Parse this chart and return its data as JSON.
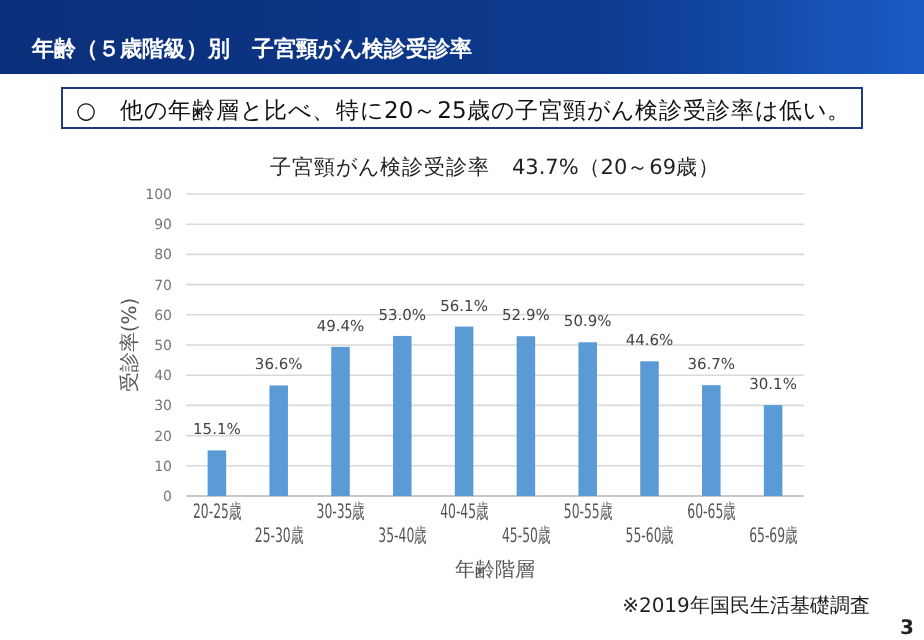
{
  "chart_data": {
    "type": "bar",
    "title": "子宮頸がん検診受診率　43.7%（20～69歳）",
    "subtitle": "○　他の年齢層と比べ、特に20～25歳の子宮頸がん検診受診率は低い。",
    "xlabel": "年齢階層",
    "ylabel": "受診率(%)",
    "annotations": [
      "年齢（５歳階級）別　子宮頸がん検診受診率",
      "※2019年国民生活基礎調査",
      "3"
    ],
    "categories": [
      "20-25歳",
      "25-30歳",
      "30-35歳",
      "35-40歳",
      "40-45歳",
      "45-50歳",
      "50-55歳",
      "55-60歳",
      "60-65歳",
      "65-69歳"
    ],
    "values": [
      15.1,
      36.6,
      49.4,
      53.0,
      56.1,
      52.9,
      50.9,
      44.6,
      36.7,
      30.1
    ],
    "value_labels": [
      "15.1%",
      "36.6%",
      "49.4%",
      "53.0%",
      "56.1%",
      "52.9%",
      "50.9%",
      "44.6%",
      "36.7%",
      "30.1%"
    ],
    "color": "#5b9bd5",
    "ylim": [
      0,
      100
    ],
    "yticks": [
      0,
      10,
      20,
      30,
      40,
      50,
      60,
      70,
      80,
      90,
      100
    ],
    "grid": "y"
  }
}
